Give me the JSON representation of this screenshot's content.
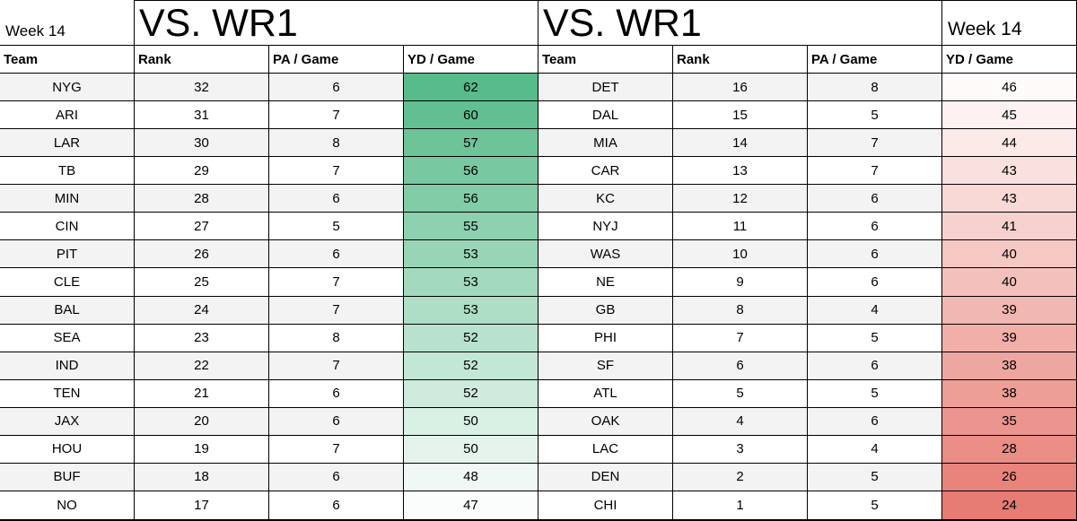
{
  "left_table": {
    "week_label": "Week 14",
    "title": "VS. WR1",
    "columns": [
      "Team",
      "Rank",
      "PA / Game",
      "YD / Game"
    ],
    "rows": [
      {
        "team": "NYG",
        "rank": 32,
        "pa": 6,
        "yd": 62
      },
      {
        "team": "ARI",
        "rank": 31,
        "pa": 7,
        "yd": 60
      },
      {
        "team": "LAR",
        "rank": 30,
        "pa": 8,
        "yd": 57
      },
      {
        "team": "TB",
        "rank": 29,
        "pa": 7,
        "yd": 56
      },
      {
        "team": "MIN",
        "rank": 28,
        "pa": 6,
        "yd": 56
      },
      {
        "team": "CIN",
        "rank": 27,
        "pa": 5,
        "yd": 55
      },
      {
        "team": "PIT",
        "rank": 26,
        "pa": 6,
        "yd": 53
      },
      {
        "team": "CLE",
        "rank": 25,
        "pa": 7,
        "yd": 53
      },
      {
        "team": "BAL",
        "rank": 24,
        "pa": 7,
        "yd": 53
      },
      {
        "team": "SEA",
        "rank": 23,
        "pa": 8,
        "yd": 52
      },
      {
        "team": "IND",
        "rank": 22,
        "pa": 7,
        "yd": 52
      },
      {
        "team": "TEN",
        "rank": 21,
        "pa": 6,
        "yd": 52
      },
      {
        "team": "JAX",
        "rank": 20,
        "pa": 6,
        "yd": 50
      },
      {
        "team": "HOU",
        "rank": 19,
        "pa": 7,
        "yd": 50
      },
      {
        "team": "BUF",
        "rank": 18,
        "pa": 6,
        "yd": 48
      },
      {
        "team": "NO",
        "rank": 17,
        "pa": 6,
        "yd": 47
      }
    ]
  },
  "right_table": {
    "week_label": "Week 14",
    "title": "VS. WR1",
    "columns": [
      "Team",
      "Rank",
      "PA / Game",
      "YD / Game"
    ],
    "rows": [
      {
        "team": "DET",
        "rank": 16,
        "pa": 8,
        "yd": 46
      },
      {
        "team": "DAL",
        "rank": 15,
        "pa": 5,
        "yd": 45
      },
      {
        "team": "MIA",
        "rank": 14,
        "pa": 7,
        "yd": 44
      },
      {
        "team": "CAR",
        "rank": 13,
        "pa": 7,
        "yd": 43
      },
      {
        "team": "KC",
        "rank": 12,
        "pa": 6,
        "yd": 43
      },
      {
        "team": "NYJ",
        "rank": 11,
        "pa": 6,
        "yd": 41
      },
      {
        "team": "WAS",
        "rank": 10,
        "pa": 6,
        "yd": 40
      },
      {
        "team": "NE",
        "rank": 9,
        "pa": 6,
        "yd": 40
      },
      {
        "team": "GB",
        "rank": 8,
        "pa": 4,
        "yd": 39
      },
      {
        "team": "PHI",
        "rank": 7,
        "pa": 5,
        "yd": 39
      },
      {
        "team": "SF",
        "rank": 6,
        "pa": 6,
        "yd": 38
      },
      {
        "team": "ATL",
        "rank": 5,
        "pa": 5,
        "yd": 38
      },
      {
        "team": "OAK",
        "rank": 4,
        "pa": 6,
        "yd": 35
      },
      {
        "team": "LAC",
        "rank": 3,
        "pa": 4,
        "yd": 28
      },
      {
        "team": "DEN",
        "rank": 2,
        "pa": 5,
        "yd": 26
      },
      {
        "team": "CHI",
        "rank": 1,
        "pa": 5,
        "yd": 24
      }
    ]
  },
  "colors": {
    "scale_green": "#57bb8a",
    "scale_red": "#e67c73",
    "scale_neutral": "#ffffff",
    "row_stripe": "#f3f3f3",
    "border": "#000000",
    "background": "#ffffff"
  },
  "color_scale": {
    "applies_to": "yd_cell",
    "basis": "rank",
    "min": 1,
    "mid": 16.5,
    "max": 32
  }
}
